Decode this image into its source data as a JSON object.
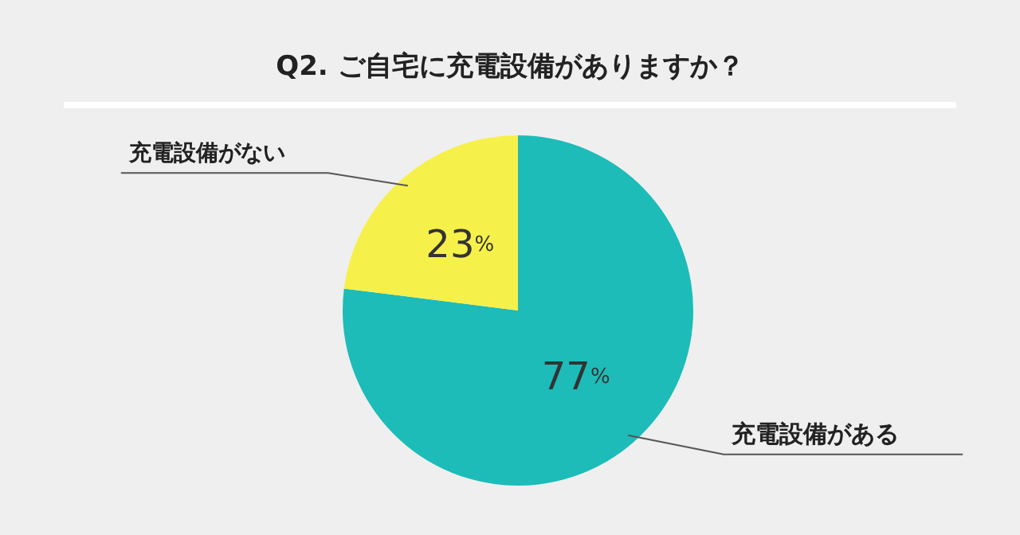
{
  "chart_data": {
    "type": "pie",
    "title": "Q2. ご自宅に充電設備がありますか？",
    "categories": [
      "充電設備がある",
      "充電設備がない"
    ],
    "values": [
      77,
      23
    ],
    "colors": [
      "#1dbcb8",
      "#f6f04a"
    ],
    "value_labels": [
      "77%",
      "23%"
    ],
    "legend": false
  }
}
